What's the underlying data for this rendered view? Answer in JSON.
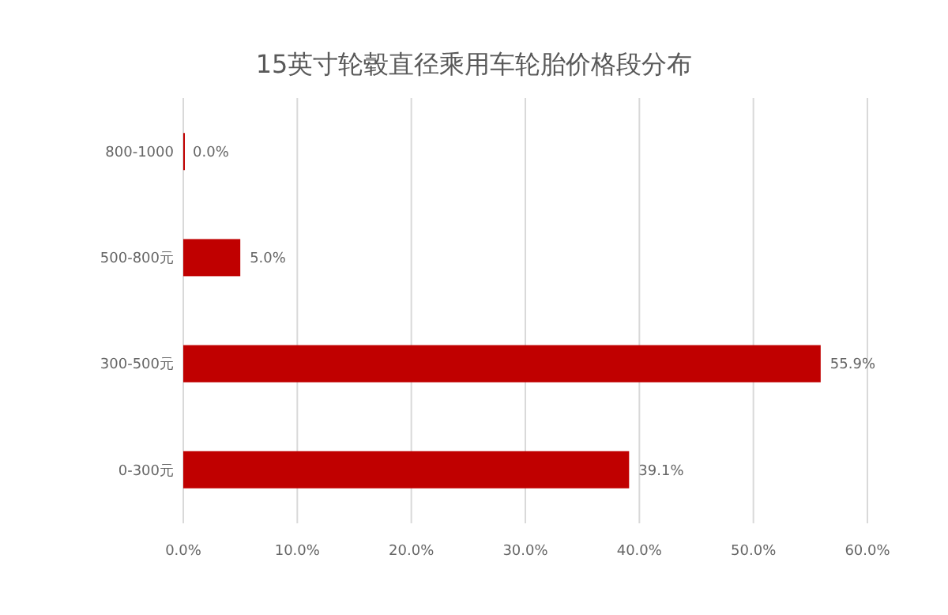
{
  "chart_data": {
    "type": "bar",
    "orientation": "horizontal",
    "title": "15英寸轮毂直径乘用车轮胎价格段分布",
    "categories": [
      "800-1000",
      "500-800元",
      "300-500元",
      "0-300元"
    ],
    "values": [
      0.0,
      5.0,
      55.9,
      39.1
    ],
    "value_labels": [
      "0.0%",
      "5.0%",
      "55.9%",
      "39.1%"
    ],
    "color": "#c00000",
    "xlim": [
      0,
      60
    ],
    "xticks": [
      {
        "value": 0,
        "label": "0.0%"
      },
      {
        "value": 10,
        "label": "10.0%"
      },
      {
        "value": 20,
        "label": "20.0%"
      },
      {
        "value": 30,
        "label": "30.0%"
      },
      {
        "value": 40,
        "label": "40.0%"
      },
      {
        "value": 50,
        "label": "50.0%"
      },
      {
        "value": 60,
        "label": "60.0%"
      }
    ],
    "grid": "x"
  }
}
